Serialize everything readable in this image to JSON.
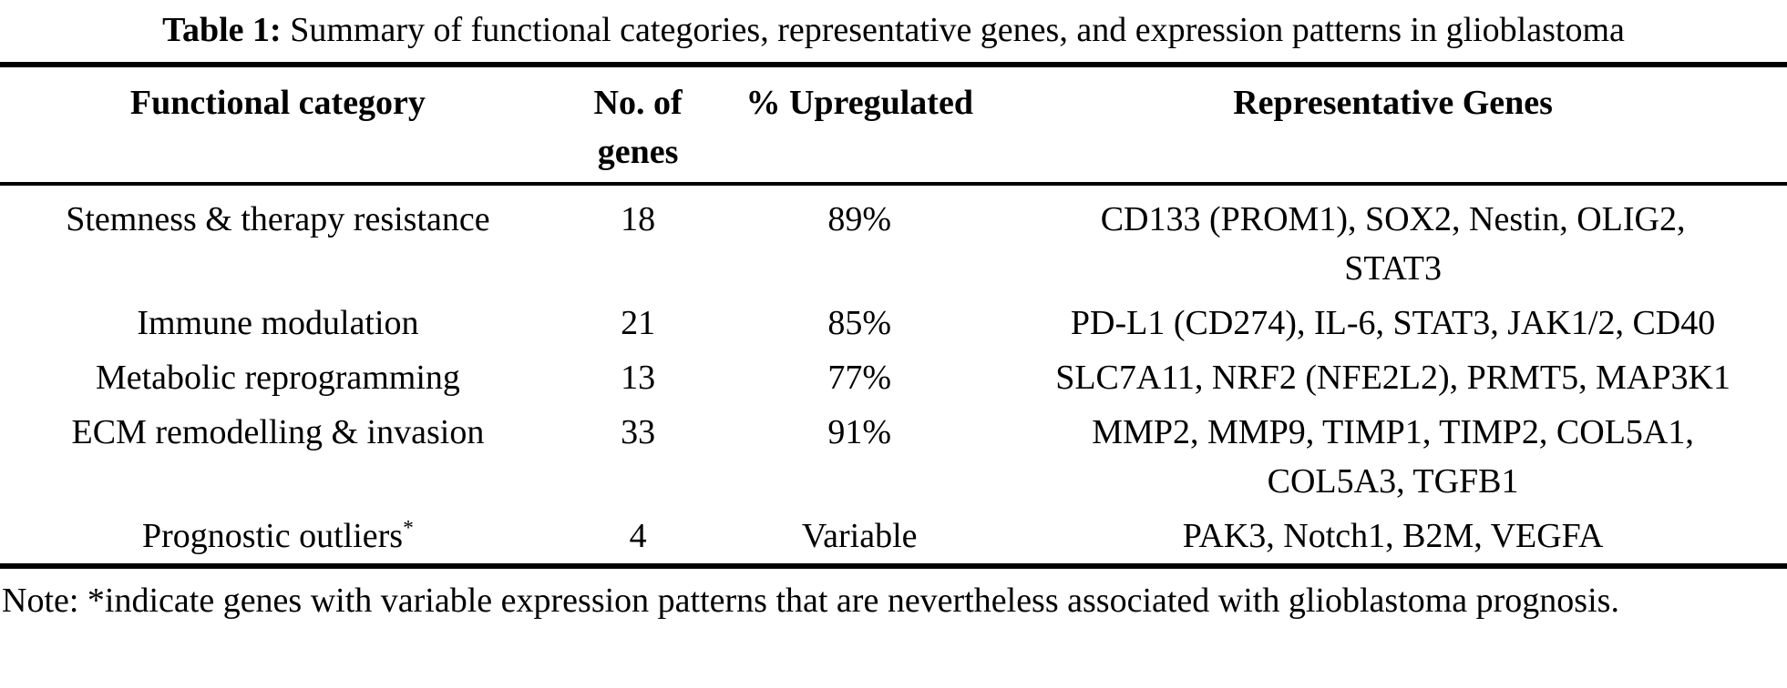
{
  "colors": {
    "background": "#ffffff",
    "text": "#000000",
    "rule": "#000000"
  },
  "caption": {
    "label": "Table 1:",
    "text": "Summary of functional categories, representative genes, and expression patterns in glioblastoma"
  },
  "table": {
    "columns": [
      "Functional category",
      "No. of genes",
      "% Upregulated",
      "Representative Genes"
    ],
    "rows": [
      {
        "category": "Stemness & therapy resistance",
        "marker": "",
        "genes_count": "18",
        "pct_upregulated": "89%",
        "representative_genes": "CD133 (PROM1), SOX2, Nestin, OLIG2, STAT3"
      },
      {
        "category": "Immune modulation",
        "marker": "",
        "genes_count": "21",
        "pct_upregulated": "85%",
        "representative_genes": "PD-L1 (CD274), IL-6, STAT3, JAK1/2, CD40"
      },
      {
        "category": "Metabolic reprogramming",
        "marker": "",
        "genes_count": "13",
        "pct_upregulated": "77%",
        "representative_genes": "SLC7A11, NRF2 (NFE2L2), PRMT5, MAP3K1"
      },
      {
        "category": "ECM remodelling & invasion",
        "marker": "",
        "genes_count": "33",
        "pct_upregulated": "91%",
        "representative_genes": "MMP2, MMP9, TIMP1, TIMP2, COL5A1, COL5A3, TGFB1"
      },
      {
        "category": "Prognostic outliers",
        "marker": "*",
        "genes_count": "4",
        "pct_upregulated": "Variable",
        "representative_genes": "PAK3, Notch1, B2M, VEGFA"
      }
    ]
  },
  "note": "Note: *indicate genes with variable expression patterns that are nevertheless associated with glioblastoma prognosis."
}
